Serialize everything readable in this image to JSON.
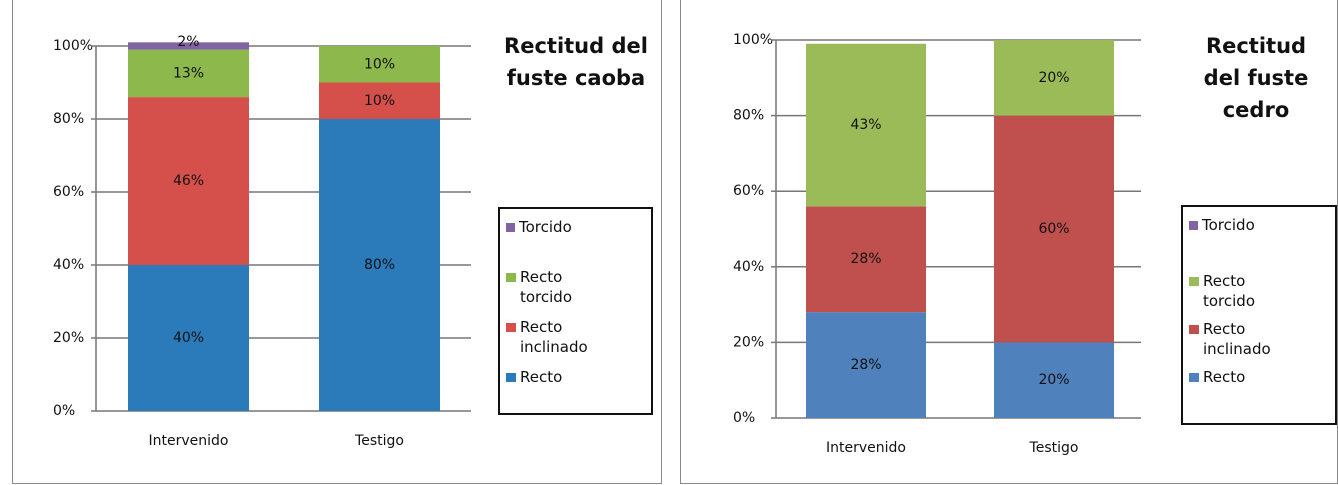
{
  "chart_data": [
    {
      "type": "stacked_bar",
      "title": "Rectitud del fuste caoba",
      "categories": [
        "Intervenido",
        "Testigo"
      ],
      "series": [
        {
          "name": "Recto",
          "color": "#2b7bbb",
          "values": [
            40,
            80
          ],
          "value_labels": [
            "40%",
            "80%"
          ]
        },
        {
          "name": "Recto inclinado",
          "color": "#d6504b",
          "values": [
            46,
            10
          ],
          "value_labels": [
            "46%",
            "10%"
          ]
        },
        {
          "name": "Recto torcido",
          "color": "#8cb84c",
          "values": [
            13,
            10
          ],
          "value_labels": [
            "13%",
            "10%"
          ]
        },
        {
          "name": "Torcido",
          "color": "#8064a2",
          "values": [
            2,
            null
          ],
          "value_labels": [
            "2%",
            null
          ]
        }
      ],
      "ylim": [
        0,
        100
      ],
      "yticks": [
        {
          "value": 0,
          "label": "0%"
        },
        {
          "value": 20,
          "label": "20%"
        },
        {
          "value": 40,
          "label": "40%"
        },
        {
          "value": 60,
          "label": "60%"
        },
        {
          "value": 80,
          "label": "80%"
        },
        {
          "value": 100,
          "label": "100%"
        }
      ],
      "grid": true,
      "legend": "right"
    },
    {
      "type": "stacked_bar",
      "title": "Rectitud del fuste cedro",
      "categories": [
        "Intervenido",
        "Testigo"
      ],
      "series": [
        {
          "name": "Recto",
          "color": "#4f81bd",
          "values": [
            28,
            20
          ],
          "value_labels": [
            "28%",
            "20%"
          ]
        },
        {
          "name": "Recto inclinado",
          "color": "#c0504d",
          "values": [
            28,
            60
          ],
          "value_labels": [
            "28%",
            "60%"
          ]
        },
        {
          "name": "Recto torcido",
          "color": "#9bbb59",
          "values": [
            43,
            20
          ],
          "value_labels": [
            "43%",
            "20%"
          ]
        },
        {
          "name": "Torcido",
          "color": "#8064a2",
          "values": [
            null,
            null
          ],
          "value_labels": [
            null,
            null
          ]
        }
      ],
      "ylim": [
        0,
        100
      ],
      "yticks": [
        {
          "value": 0,
          "label": "0%"
        },
        {
          "value": 20,
          "label": "20%"
        },
        {
          "value": 40,
          "label": "40%"
        },
        {
          "value": 60,
          "label": "60%"
        },
        {
          "value": 80,
          "label": "80%"
        },
        {
          "value": 100,
          "label": "100%"
        }
      ],
      "grid": true,
      "legend": "right"
    }
  ]
}
